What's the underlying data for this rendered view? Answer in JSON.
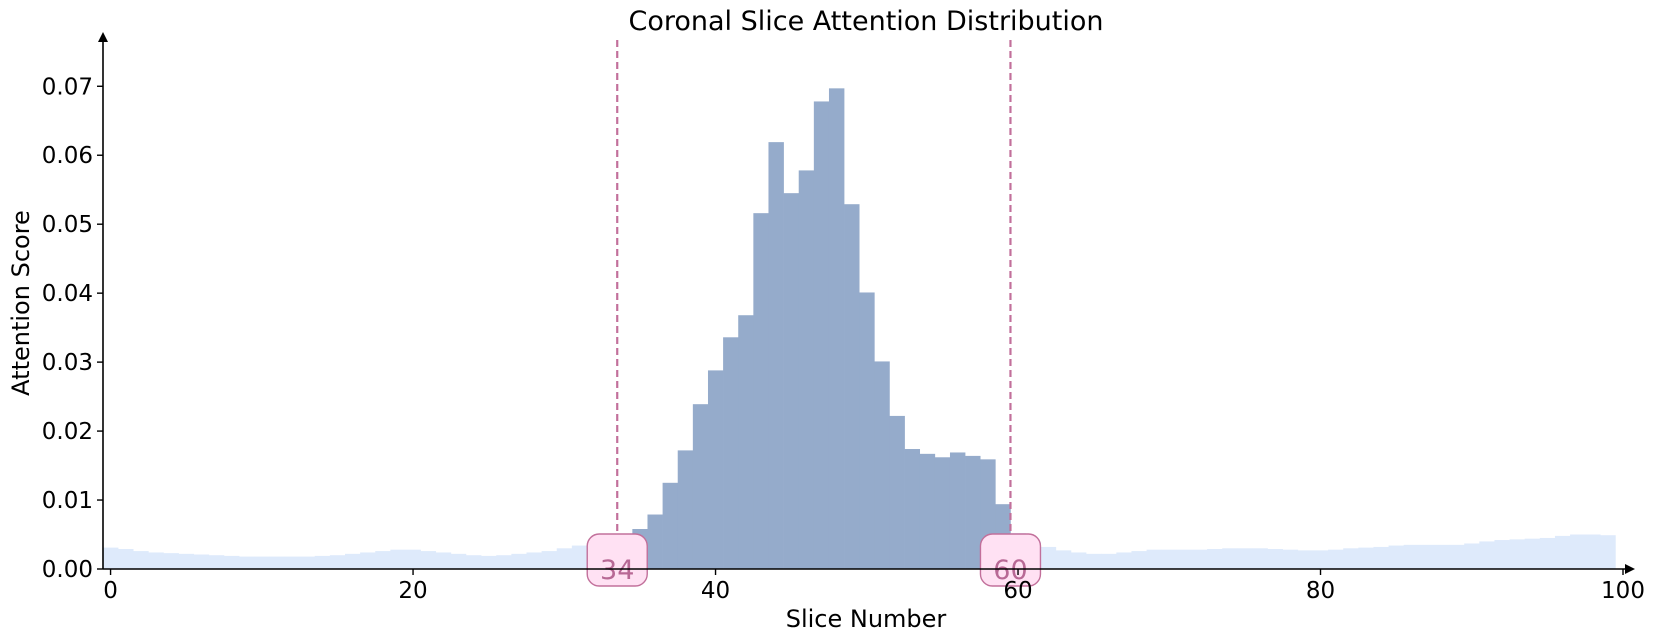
{
  "chart_data": {
    "type": "bar",
    "title": "Coronal Slice Attention Distribution",
    "xlabel": "Slice Number",
    "ylabel": "Attention Score",
    "xlim": [
      -0.5,
      100
    ],
    "ylim": [
      0,
      0.077
    ],
    "xticks": [
      0,
      20,
      40,
      60,
      80,
      100
    ],
    "yticks": [
      0.0,
      0.01,
      0.02,
      0.03,
      0.04,
      0.05,
      0.06,
      0.07
    ],
    "ytick_labels": [
      "0.00",
      "0.01",
      "0.02",
      "0.03",
      "0.04",
      "0.05",
      "0.06",
      "0.07"
    ],
    "grid": false,
    "region_start": 34,
    "region_end": 60,
    "values": [
      0.0031,
      0.0029,
      0.0026,
      0.0024,
      0.0023,
      0.0022,
      0.0021,
      0.002,
      0.0019,
      0.0018,
      0.0018,
      0.0018,
      0.0018,
      0.0018,
      0.0019,
      0.002,
      0.0022,
      0.0024,
      0.0026,
      0.0028,
      0.0028,
      0.0026,
      0.0024,
      0.0022,
      0.002,
      0.0019,
      0.002,
      0.0022,
      0.0024,
      0.0026,
      0.003,
      0.0034,
      0.0038,
      0.004,
      0.0041,
      0.0058,
      0.0079,
      0.0125,
      0.0172,
      0.0239,
      0.0288,
      0.0336,
      0.0368,
      0.0516,
      0.0619,
      0.0545,
      0.0578,
      0.0678,
      0.0697,
      0.0529,
      0.0401,
      0.0301,
      0.0222,
      0.0174,
      0.0167,
      0.0162,
      0.0169,
      0.0164,
      0.0159,
      0.0094,
      0.0052,
      0.0039,
      0.0032,
      0.0027,
      0.0024,
      0.0022,
      0.0022,
      0.0024,
      0.0026,
      0.0028,
      0.0028,
      0.0028,
      0.0028,
      0.0029,
      0.003,
      0.003,
      0.003,
      0.0029,
      0.0028,
      0.0027,
      0.0027,
      0.0028,
      0.003,
      0.0031,
      0.0032,
      0.0034,
      0.0035,
      0.0035,
      0.0035,
      0.0035,
      0.0037,
      0.004,
      0.0042,
      0.0043,
      0.0044,
      0.0045,
      0.0048,
      0.005,
      0.005,
      0.0049
    ],
    "colors": {
      "inside": "#95abcb",
      "outside": "#deeafb",
      "marker_line": "#c2709b",
      "marker_fill": "#ffe1f3",
      "marker_text": "#b86995",
      "axis": "#000000"
    }
  }
}
